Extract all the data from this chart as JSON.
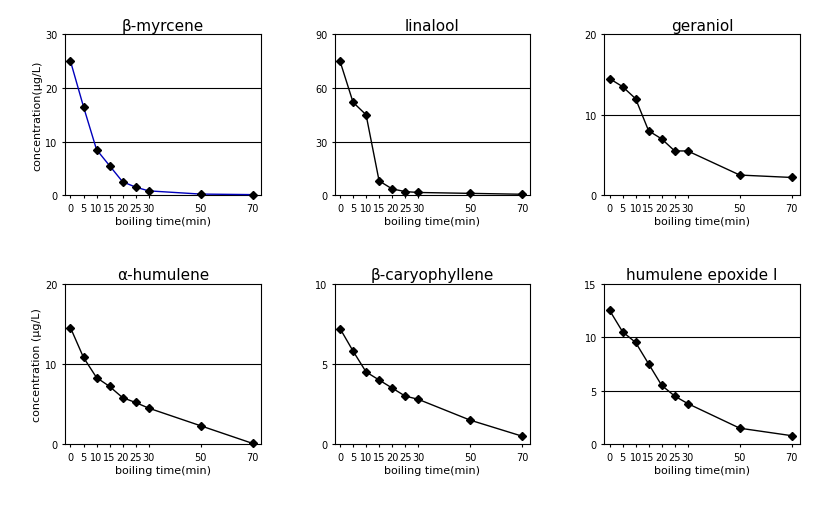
{
  "subplots": [
    {
      "title": "β-myrcene",
      "x": [
        0,
        5,
        10,
        15,
        20,
        25,
        30,
        50,
        70
      ],
      "y": [
        25.0,
        16.5,
        8.5,
        5.5,
        2.5,
        1.5,
        0.8,
        0.2,
        0.1
      ],
      "ylim": [
        0,
        30
      ],
      "yticks": [
        0,
        10,
        20,
        30
      ],
      "hlines": [
        10,
        20
      ],
      "line_color": "#0000bb",
      "row": 0,
      "col": 0
    },
    {
      "title": "linalool",
      "x": [
        0,
        5,
        10,
        15,
        20,
        25,
        30,
        50,
        70
      ],
      "y": [
        75.0,
        52.0,
        45.0,
        8.0,
        3.5,
        2.0,
        1.5,
        1.0,
        0.5
      ],
      "ylim": [
        0,
        90
      ],
      "yticks": [
        0,
        30,
        60,
        90
      ],
      "hlines": [
        30,
        60
      ],
      "line_color": "#000000",
      "row": 0,
      "col": 1
    },
    {
      "title": "geraniol",
      "x": [
        0,
        5,
        10,
        15,
        20,
        25,
        30,
        50,
        70
      ],
      "y": [
        14.5,
        13.5,
        12.0,
        8.0,
        7.0,
        5.5,
        5.5,
        2.5,
        2.2
      ],
      "ylim": [
        0,
        20
      ],
      "yticks": [
        0,
        10,
        20
      ],
      "hlines": [
        10
      ],
      "line_color": "#000000",
      "row": 0,
      "col": 2
    },
    {
      "title": "α-humulene",
      "x": [
        0,
        5,
        10,
        15,
        20,
        25,
        30,
        50,
        70
      ],
      "y": [
        14.5,
        10.8,
        8.3,
        7.2,
        5.8,
        5.2,
        4.5,
        2.3,
        0.1
      ],
      "ylim": [
        0,
        20
      ],
      "yticks": [
        0,
        10,
        20
      ],
      "hlines": [
        10
      ],
      "line_color": "#000000",
      "row": 1,
      "col": 0
    },
    {
      "title": "β-caryophyllene",
      "x": [
        0,
        5,
        10,
        15,
        20,
        25,
        30,
        50,
        70
      ],
      "y": [
        7.2,
        5.8,
        4.5,
        4.0,
        3.5,
        3.0,
        2.8,
        1.5,
        0.5
      ],
      "ylim": [
        0,
        10
      ],
      "yticks": [
        0,
        5,
        10
      ],
      "hlines": [
        5
      ],
      "line_color": "#000000",
      "row": 1,
      "col": 1
    },
    {
      "title": "humulene epoxide I",
      "x": [
        0,
        5,
        10,
        15,
        20,
        25,
        30,
        50,
        70
      ],
      "y": [
        12.5,
        10.5,
        9.5,
        7.5,
        5.5,
        4.5,
        3.8,
        1.5,
        0.8
      ],
      "ylim": [
        0,
        15
      ],
      "yticks": [
        0,
        5,
        10,
        15
      ],
      "hlines": [
        5,
        10
      ],
      "line_color": "#000000",
      "row": 1,
      "col": 2
    }
  ],
  "xticks": [
    0,
    5,
    10,
    15,
    20,
    25,
    30,
    50,
    70
  ],
  "xlabel": "boiling time(min)",
  "ylabel_top": "concentration(μg/L)",
  "ylabel_bottom": "concentration (μg/L)",
  "marker": "D",
  "marker_size": 4,
  "marker_color": "#000000",
  "line_width": 1.0,
  "fig_bg": "#ffffff",
  "title_fontsize": 11,
  "tick_fontsize": 7,
  "label_fontsize": 8
}
